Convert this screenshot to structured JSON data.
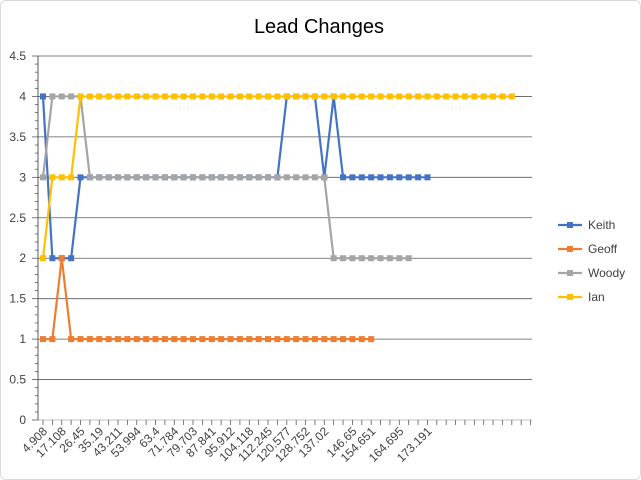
{
  "chart_data": {
    "type": "line",
    "title": "Lead Changes",
    "ylim": [
      0,
      4.5
    ],
    "y_ticks": [
      "0",
      "0.5",
      "1",
      "1.5",
      "2",
      "2.5",
      "3",
      "3.5",
      "4",
      "4.5"
    ],
    "x_tick_labels": [
      "4.908",
      "17.108",
      "26.45",
      "35.19",
      "43.211",
      "53.994",
      "63.4",
      "71.784",
      "79.703",
      "87.841",
      "95.912",
      "104.118",
      "112.245",
      "120.577",
      "128.752",
      "137.02",
      "146.65",
      "154.651",
      "164.695",
      "173.191"
    ],
    "grid": true,
    "legend_position": "right",
    "series": [
      {
        "name": "Keith",
        "color": "#4472C4",
        "values": [
          4,
          2,
          2,
          2,
          3,
          3,
          3,
          3,
          3,
          3,
          3,
          3,
          3,
          3,
          3,
          3,
          3,
          3,
          3,
          3,
          3,
          3,
          3,
          3,
          3,
          3,
          4,
          4,
          4,
          4,
          3,
          4,
          3,
          3,
          3,
          3,
          3,
          3,
          3,
          3,
          3,
          3
        ]
      },
      {
        "name": "Geoff",
        "color": "#ED7D31",
        "values": [
          1,
          1,
          2,
          1,
          1,
          1,
          1,
          1,
          1,
          1,
          1,
          1,
          1,
          1,
          1,
          1,
          1,
          1,
          1,
          1,
          1,
          1,
          1,
          1,
          1,
          1,
          1,
          1,
          1,
          1,
          1,
          1,
          1,
          1,
          1,
          1
        ]
      },
      {
        "name": "Woody",
        "color": "#A5A5A5",
        "values": [
          3,
          4,
          4,
          4,
          4,
          3,
          3,
          3,
          3,
          3,
          3,
          3,
          3,
          3,
          3,
          3,
          3,
          3,
          3,
          3,
          3,
          3,
          3,
          3,
          3,
          3,
          3,
          3,
          3,
          3,
          3,
          2,
          2,
          2,
          2,
          2,
          2,
          2,
          2,
          2
        ]
      },
      {
        "name": "Ian",
        "color": "#FFC000",
        "values": [
          2,
          3,
          3,
          3,
          4,
          4,
          4,
          4,
          4,
          4,
          4,
          4,
          4,
          4,
          4,
          4,
          4,
          4,
          4,
          4,
          4,
          4,
          4,
          4,
          4,
          4,
          4,
          4,
          4,
          4,
          4,
          4,
          4,
          4,
          4,
          4,
          4,
          4,
          4,
          4,
          4,
          4,
          4,
          4,
          4,
          4,
          4,
          4,
          4,
          4,
          4
        ]
      }
    ]
  }
}
